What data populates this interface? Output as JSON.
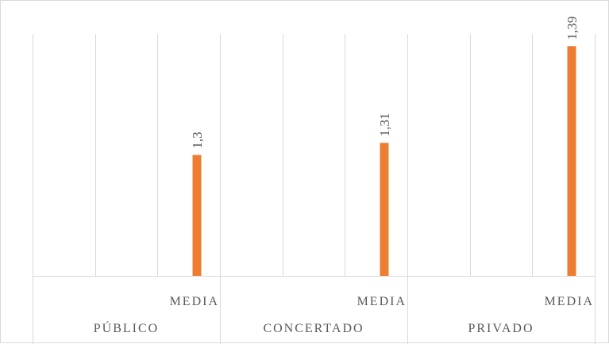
{
  "chart_data": {
    "type": "bar",
    "title": "",
    "xlabel": "",
    "ylabel": "",
    "groups": [
      {
        "label": "PÚBLICO",
        "sub_categories": [
          "MEDIA"
        ],
        "values": [
          1.3
        ],
        "value_labels": [
          "1,3"
        ]
      },
      {
        "label": "CONCERTADO",
        "sub_categories": [
          "MEDIA"
        ],
        "values": [
          1.31
        ],
        "value_labels": [
          "1,31"
        ]
      },
      {
        "label": "PRIVADO",
        "sub_categories": [
          "MEDIA"
        ],
        "values": [
          1.39
        ],
        "value_labels": [
          "1,39"
        ]
      }
    ],
    "ylim": [
      1.2,
      1.4
    ],
    "grid": "vertical",
    "legend": "none",
    "bar_color": "#ED7D31",
    "grid_color": "#D9D9D9",
    "text_color": "#595959"
  }
}
